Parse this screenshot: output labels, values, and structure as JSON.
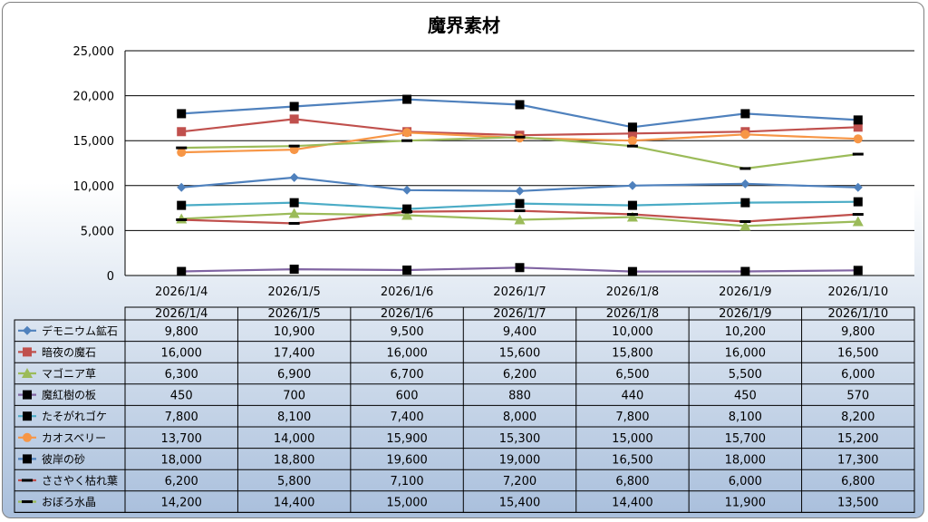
{
  "chart_data": {
    "type": "line",
    "title": "魔界素材",
    "categories": [
      "2026/1/4",
      "2026/1/5",
      "2026/1/6",
      "2026/1/7",
      "2026/1/8",
      "2026/1/9",
      "2026/1/10"
    ],
    "ylim": [
      0,
      25000
    ],
    "yticks": [
      0,
      5000,
      10000,
      15000,
      20000,
      25000
    ],
    "ytick_labels": [
      "0",
      "5,000",
      "10,000",
      "15,000",
      "20,000",
      "25,000"
    ],
    "grid": true,
    "legend": "data-table",
    "series": [
      {
        "name": "デモニウム鉱石",
        "color": "#4f81bd",
        "marker": "diamond",
        "values": [
          9800,
          10900,
          9500,
          9400,
          10000,
          10200,
          9800
        ],
        "labels": [
          "9,800",
          "10,900",
          "9,500",
          "9,400",
          "10,000",
          "10,200",
          "9,800"
        ]
      },
      {
        "name": "暗夜の魔石",
        "color": "#c0504d",
        "marker": "square",
        "values": [
          16000,
          17400,
          16000,
          15600,
          15800,
          16000,
          16500
        ],
        "labels": [
          "16,000",
          "17,400",
          "16,000",
          "15,600",
          "15,800",
          "16,000",
          "16,500"
        ]
      },
      {
        "name": "マゴニア草",
        "color": "#9bbb59",
        "marker": "triangle",
        "values": [
          6300,
          6900,
          6700,
          6200,
          6500,
          5500,
          6000
        ],
        "labels": [
          "6,300",
          "6,900",
          "6,700",
          "6,200",
          "6,500",
          "5,500",
          "6,000"
        ]
      },
      {
        "name": "魔紅樹の板",
        "color": "#8064a2",
        "marker": "square-black",
        "values": [
          450,
          700,
          600,
          880,
          440,
          450,
          570
        ],
        "labels": [
          "450",
          "700",
          "600",
          "880",
          "440",
          "450",
          "570"
        ]
      },
      {
        "name": "たそがれゴケ",
        "color": "#4bacc6",
        "marker": "square-black",
        "values": [
          7800,
          8100,
          7400,
          8000,
          7800,
          8100,
          8200
        ],
        "labels": [
          "7,800",
          "8,100",
          "7,400",
          "8,000",
          "7,800",
          "8,100",
          "8,200"
        ]
      },
      {
        "name": "カオスベリー",
        "color": "#f79646",
        "marker": "circle",
        "values": [
          13700,
          14000,
          15900,
          15300,
          15000,
          15700,
          15200
        ],
        "labels": [
          "13,700",
          "14,000",
          "15,900",
          "15,300",
          "15,000",
          "15,700",
          "15,200"
        ]
      },
      {
        "name": "彼岸の砂",
        "color": "#4f81bd",
        "marker": "square-black",
        "values": [
          18000,
          18800,
          19600,
          19000,
          16500,
          18000,
          17300
        ],
        "labels": [
          "18,000",
          "18,800",
          "19,600",
          "19,000",
          "16,500",
          "18,000",
          "17,300"
        ]
      },
      {
        "name": "ささやく枯れ葉",
        "color": "#c0504d",
        "marker": "dash-black",
        "values": [
          6200,
          5800,
          7100,
          7200,
          6800,
          6000,
          6800
        ],
        "labels": [
          "6,200",
          "5,800",
          "7,100",
          "7,200",
          "6,800",
          "6,000",
          "6,800"
        ]
      },
      {
        "name": "おぼろ水晶",
        "color": "#9bbb59",
        "marker": "dash-black",
        "values": [
          14200,
          14400,
          15000,
          15400,
          14400,
          11900,
          13500
        ],
        "labels": [
          "14,200",
          "14,400",
          "15,000",
          "15,400",
          "14,400",
          "11,900",
          "13,500"
        ]
      }
    ]
  }
}
